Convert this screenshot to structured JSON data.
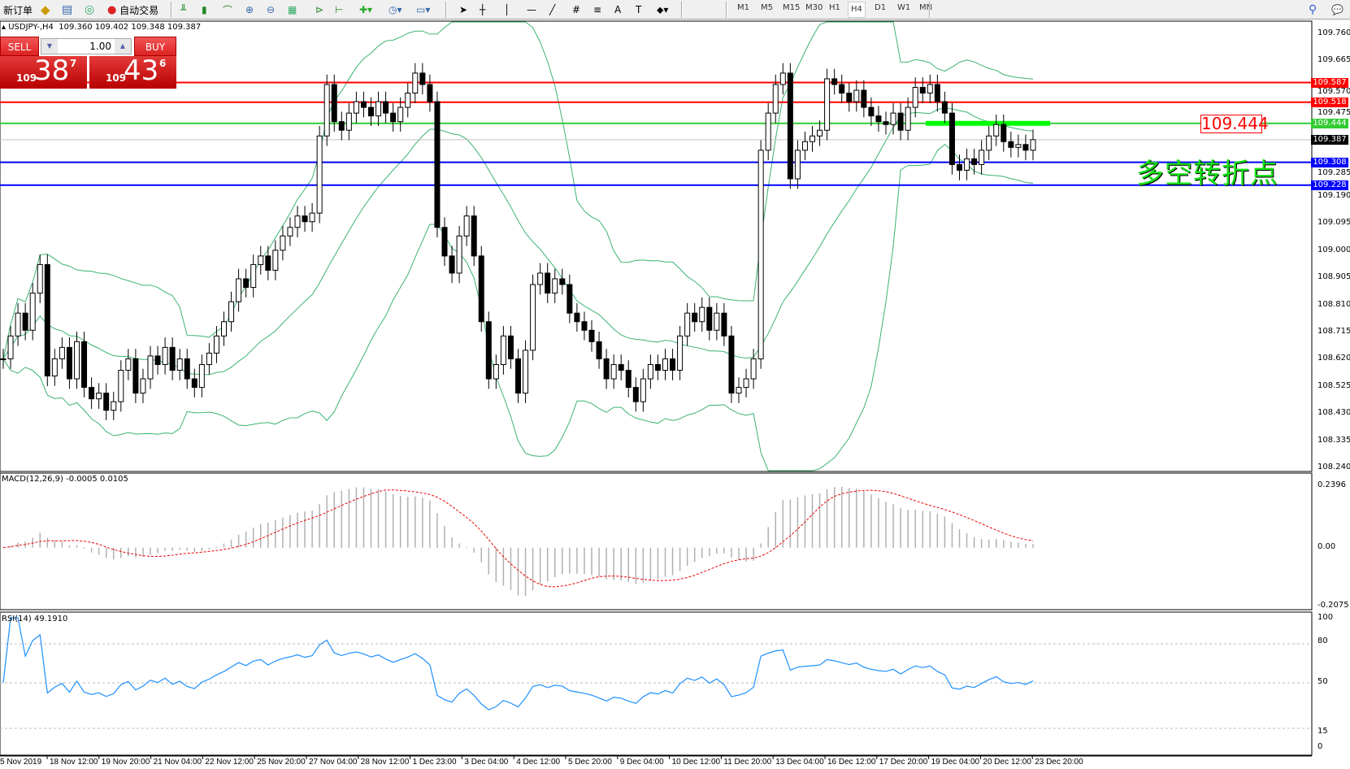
{
  "toolbar": {
    "new_order": "新订单",
    "auto_trading": "自动交易",
    "timeframes": [
      "M1",
      "M5",
      "M15",
      "M30",
      "H1",
      "H4",
      "D1",
      "W1",
      "MN"
    ],
    "active_timeframe": "H4"
  },
  "header": {
    "symbol": "USDJPY-,H4",
    "ohlc": "109.360 109.402 109.348 109.387"
  },
  "trade_panel": {
    "sell": "SELL",
    "buy": "BUY",
    "lot": "1.00",
    "sell_small": "109",
    "sell_big": "38",
    "sell_sup": "7",
    "buy_small": "109",
    "buy_big": "43",
    "buy_sup": "6"
  },
  "price_axis": [
    "109.760",
    "109.665",
    "109.570",
    "109.475",
    "109.285",
    "109.190",
    "109.095",
    "109.000",
    "108.905",
    "108.810",
    "108.715",
    "108.620",
    "108.525",
    "108.430",
    "108.335",
    "108.240"
  ],
  "price_range": [
    108.24,
    109.76
  ],
  "levels": [
    {
      "price": "109.587",
      "color": "#ff0000"
    },
    {
      "price": "109.518",
      "color": "#ff0000"
    },
    {
      "price": "109.444",
      "color": "#33cc33"
    },
    {
      "price": "109.387",
      "color": "#000000"
    },
    {
      "price": "109.308",
      "color": "#0000ff"
    },
    {
      "price": "109.228",
      "color": "#0000ff"
    }
  ],
  "annotation": {
    "text": "多空转折点",
    "level_label": "109.444",
    "highlight_color": "#00ff00"
  },
  "macd": {
    "label": "MACD(12,26,9) -0.0005 0.0105",
    "axis": [
      "0.2396",
      "0.00",
      "-0.2075"
    ]
  },
  "rsi": {
    "label": "RSI(14) 49.1910",
    "axis": [
      "100",
      "80",
      "50",
      "15",
      "0"
    ]
  },
  "time_axis": [
    "5 Nov 2019",
    "18 Nov 12:00",
    "19 Nov 20:00",
    "21 Nov 04:00",
    "22 Nov 12:00",
    "25 Nov 20:00",
    "27 Nov 04:00",
    "28 Nov 12:00",
    "1 Dec 23:00",
    "3 Dec 04:00",
    "4 Dec 12:00",
    "5 Dec 20:00",
    "9 Dec 04:00",
    "10 Dec 12:00",
    "11 Dec 20:00",
    "13 Dec 04:00",
    "16 Dec 12:00",
    "17 Dec 20:00",
    "19 Dec 04:00",
    "20 Dec 12:00",
    "23 Dec 20:00"
  ],
  "chart_data": {
    "type": "candlestick",
    "indicators": [
      "Bollinger Bands(20,2)",
      "MACD(12,26,9)",
      "RSI(14)"
    ],
    "close": [
      108.62,
      108.7,
      108.78,
      108.72,
      108.85,
      108.95,
      108.56,
      108.62,
      108.66,
      108.55,
      108.68,
      108.52,
      108.48,
      108.5,
      108.44,
      108.47,
      108.58,
      108.62,
      108.5,
      108.55,
      108.63,
      108.6,
      108.66,
      108.58,
      108.62,
      108.55,
      108.52,
      108.6,
      108.64,
      108.7,
      108.75,
      108.82,
      108.9,
      108.87,
      108.95,
      108.98,
      108.93,
      109.0,
      109.05,
      109.08,
      109.12,
      109.1,
      109.13,
      109.4,
      109.58,
      109.45,
      109.42,
      109.48,
      109.52,
      109.5,
      109.47,
      109.52,
      109.48,
      109.45,
      109.5,
      109.55,
      109.62,
      109.58,
      109.52,
      109.08,
      108.98,
      108.92,
      109.05,
      109.12,
      108.98,
      108.75,
      108.55,
      108.6,
      108.7,
      108.62,
      108.5,
      108.65,
      108.88,
      108.92,
      108.85,
      108.9,
      108.88,
      108.78,
      108.75,
      108.72,
      108.68,
      108.62,
      108.55,
      108.6,
      108.58,
      108.52,
      108.47,
      108.55,
      108.6,
      108.58,
      108.62,
      108.58,
      108.7,
      108.78,
      108.75,
      108.8,
      108.72,
      108.78,
      108.7,
      108.5,
      108.52,
      108.55,
      108.62,
      109.35,
      109.48,
      109.58,
      109.62,
      109.25,
      109.35,
      109.38,
      109.4,
      109.42,
      109.6,
      109.58,
      109.55,
      109.52,
      109.56,
      109.5,
      109.47,
      109.45,
      109.44,
      109.48,
      109.42,
      109.5,
      109.57,
      109.55,
      109.58,
      109.52,
      109.48,
      109.3,
      109.28,
      109.32,
      109.3,
      109.35,
      109.4,
      109.44,
      109.38,
      109.36,
      109.37,
      109.35,
      109.387
    ]
  }
}
